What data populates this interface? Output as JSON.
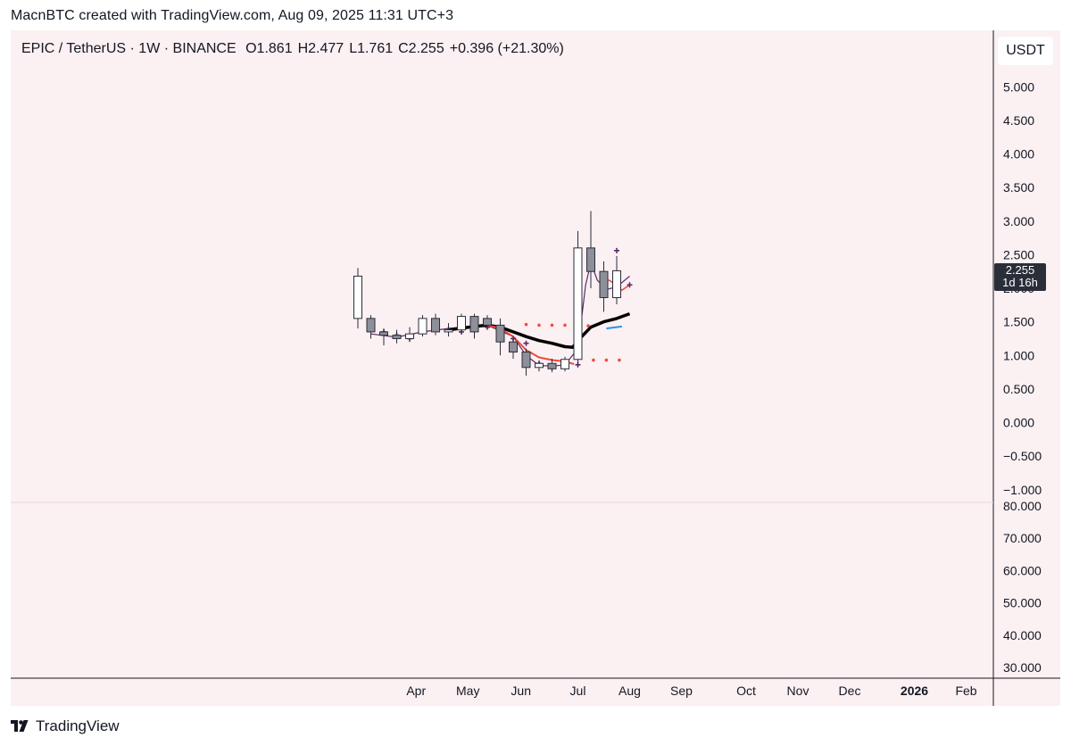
{
  "attribution": "MacnBTC created with TradingView.com, Aug 09, 2025 11:31 UTC+3",
  "legend": {
    "symbol": "EPIC / TetherUS · 1W · BINANCE",
    "open": "O1.861",
    "high": "H2.477",
    "low": "L1.761",
    "close": "C2.255",
    "change": "+0.396 (+21.30%)"
  },
  "currency": "USDT",
  "price_tag": {
    "price": "2.255",
    "countdown": "1d 16h"
  },
  "footer": {
    "brand": "TradingView"
  },
  "colors": {
    "background": "#fbf0f2",
    "candle_up": "#ffffff",
    "candle_down": "#8d8f99",
    "wick": "#2a2e39",
    "ma_black": "#000000",
    "ma_red": "#f04a3a",
    "ma_purple": "#5b2b6e",
    "dots_red": "#f04a3a",
    "segment_blue": "#2196f3"
  },
  "chart_data": {
    "type": "candlestick",
    "title": "EPIC / TetherUS · 1W · BINANCE",
    "price_axis": {
      "ticks": [
        "5.000",
        "4.500",
        "4.000",
        "3.500",
        "3.000",
        "2.500",
        "2.000",
        "1.500",
        "1.000",
        "0.500",
        "0.000",
        "−0.500",
        "−1.000"
      ],
      "range": [
        -1.0,
        5.0
      ]
    },
    "lower_axis": {
      "ticks": [
        "80.000",
        "70.000",
        "60.000",
        "50.000",
        "40.000",
        "30.000"
      ],
      "range": [
        30,
        80
      ]
    },
    "time_axis": {
      "labels": [
        "Apr",
        "May",
        "Jun",
        "Jul",
        "Aug",
        "Sep",
        "Oct",
        "Nov",
        "Dec",
        "2026",
        "Feb"
      ],
      "label_week_index": [
        4.5,
        8.5,
        12.6,
        17,
        21,
        25,
        30,
        34,
        38,
        43,
        47
      ]
    },
    "candles": [
      {
        "o": 1.55,
        "h": 2.3,
        "l": 1.4,
        "c": 2.18
      },
      {
        "o": 1.55,
        "h": 1.6,
        "l": 1.25,
        "c": 1.35
      },
      {
        "o": 1.35,
        "h": 1.4,
        "l": 1.15,
        "c": 1.3
      },
      {
        "o": 1.3,
        "h": 1.38,
        "l": 1.18,
        "c": 1.25
      },
      {
        "o": 1.25,
        "h": 1.42,
        "l": 1.2,
        "c": 1.32
      },
      {
        "o": 1.32,
        "h": 1.6,
        "l": 1.28,
        "c": 1.55
      },
      {
        "o": 1.55,
        "h": 1.62,
        "l": 1.3,
        "c": 1.35
      },
      {
        "o": 1.35,
        "h": 1.48,
        "l": 1.28,
        "c": 1.38
      },
      {
        "o": 1.38,
        "h": 1.62,
        "l": 1.32,
        "c": 1.58
      },
      {
        "o": 1.58,
        "h": 1.62,
        "l": 1.25,
        "c": 1.35
      },
      {
        "o": 1.55,
        "h": 1.6,
        "l": 1.4,
        "c": 1.45
      },
      {
        "o": 1.45,
        "h": 1.55,
        "l": 1.0,
        "c": 1.2
      },
      {
        "o": 1.2,
        "h": 1.25,
        "l": 0.95,
        "c": 1.05
      },
      {
        "o": 1.05,
        "h": 1.1,
        "l": 0.7,
        "c": 0.82
      },
      {
        "o": 0.82,
        "h": 0.92,
        "l": 0.76,
        "c": 0.88
      },
      {
        "o": 0.88,
        "h": 0.95,
        "l": 0.75,
        "c": 0.8
      },
      {
        "o": 0.8,
        "h": 0.98,
        "l": 0.76,
        "c": 0.94
      },
      {
        "o": 0.94,
        "h": 2.85,
        "l": 0.85,
        "c": 2.6
      },
      {
        "o": 2.6,
        "h": 3.15,
        "l": 2.0,
        "c": 2.25
      },
      {
        "o": 2.25,
        "h": 2.4,
        "l": 1.65,
        "c": 1.86
      },
      {
        "o": 1.86,
        "h": 2.48,
        "l": 1.76,
        "c": 2.26
      }
    ],
    "ma_black": [
      [
        7,
        1.38
      ],
      [
        9,
        1.43
      ],
      [
        10,
        1.45
      ],
      [
        11,
        1.42
      ],
      [
        12,
        1.35
      ],
      [
        13,
        1.28
      ],
      [
        14,
        1.22
      ],
      [
        15,
        1.18
      ],
      [
        16,
        1.13
      ],
      [
        16.6,
        1.12
      ],
      [
        17,
        1.22
      ],
      [
        18,
        1.42
      ],
      [
        19,
        1.5
      ],
      [
        20,
        1.55
      ],
      [
        21,
        1.62
      ]
    ],
    "ma_red": [
      [
        10,
        1.45
      ],
      [
        11,
        1.4
      ],
      [
        12,
        1.28
      ],
      [
        13,
        1.08
      ],
      [
        14,
        0.97
      ],
      [
        15,
        0.93
      ],
      [
        16,
        0.91
      ],
      [
        16.7,
        0.87
      ]
    ],
    "ma_red_recent": [
      [
        18.8,
        2.12
      ],
      [
        19.4,
        2.12
      ],
      [
        20,
        2.05
      ],
      [
        20.4,
        1.97
      ],
      [
        21,
        2.05
      ]
    ],
    "ma_purple": [
      [
        1,
        1.32
      ],
      [
        3,
        1.27
      ],
      [
        5,
        1.35
      ],
      [
        7,
        1.4
      ],
      [
        9,
        1.44
      ],
      [
        10,
        1.45
      ],
      [
        12,
        1.28
      ],
      [
        13,
        1.0
      ],
      [
        14,
        0.85
      ],
      [
        15,
        0.84
      ],
      [
        16,
        0.86
      ],
      [
        17,
        1.1
      ],
      [
        17.6,
        2.05
      ],
      [
        18,
        2.38
      ],
      [
        18.5,
        2.12
      ],
      [
        19.2,
        1.98
      ],
      [
        20,
        2.02
      ],
      [
        21,
        2.18
      ]
    ],
    "cross_markers": [
      [
        2,
        1.35
      ],
      [
        3,
        1.3
      ],
      [
        4,
        1.25
      ],
      [
        6,
        1.42
      ],
      [
        7,
        1.38
      ],
      [
        8,
        1.35
      ],
      [
        9,
        1.38
      ],
      [
        10,
        1.42
      ],
      [
        11,
        1.32
      ],
      [
        12,
        1.25
      ],
      [
        13,
        1.18
      ],
      [
        14,
        0.88
      ],
      [
        15,
        0.82
      ],
      [
        16,
        0.86
      ],
      [
        17,
        0.86
      ],
      [
        19,
        1.9
      ],
      [
        20,
        2.56
      ],
      [
        21,
        2.05
      ]
    ],
    "dots_upper": [
      [
        13,
        1.46
      ],
      [
        14,
        1.45
      ],
      [
        15,
        1.45
      ],
      [
        16,
        1.45
      ],
      [
        17,
        1.44
      ],
      [
        17.8,
        1.44
      ]
    ],
    "dots_lower": [
      [
        18.2,
        0.93
      ],
      [
        19.2,
        0.93
      ],
      [
        20.2,
        0.93
      ]
    ],
    "blue_segment": [
      [
        19.2,
        1.4
      ],
      [
        20.4,
        1.43
      ]
    ],
    "last_price": 2.255
  }
}
